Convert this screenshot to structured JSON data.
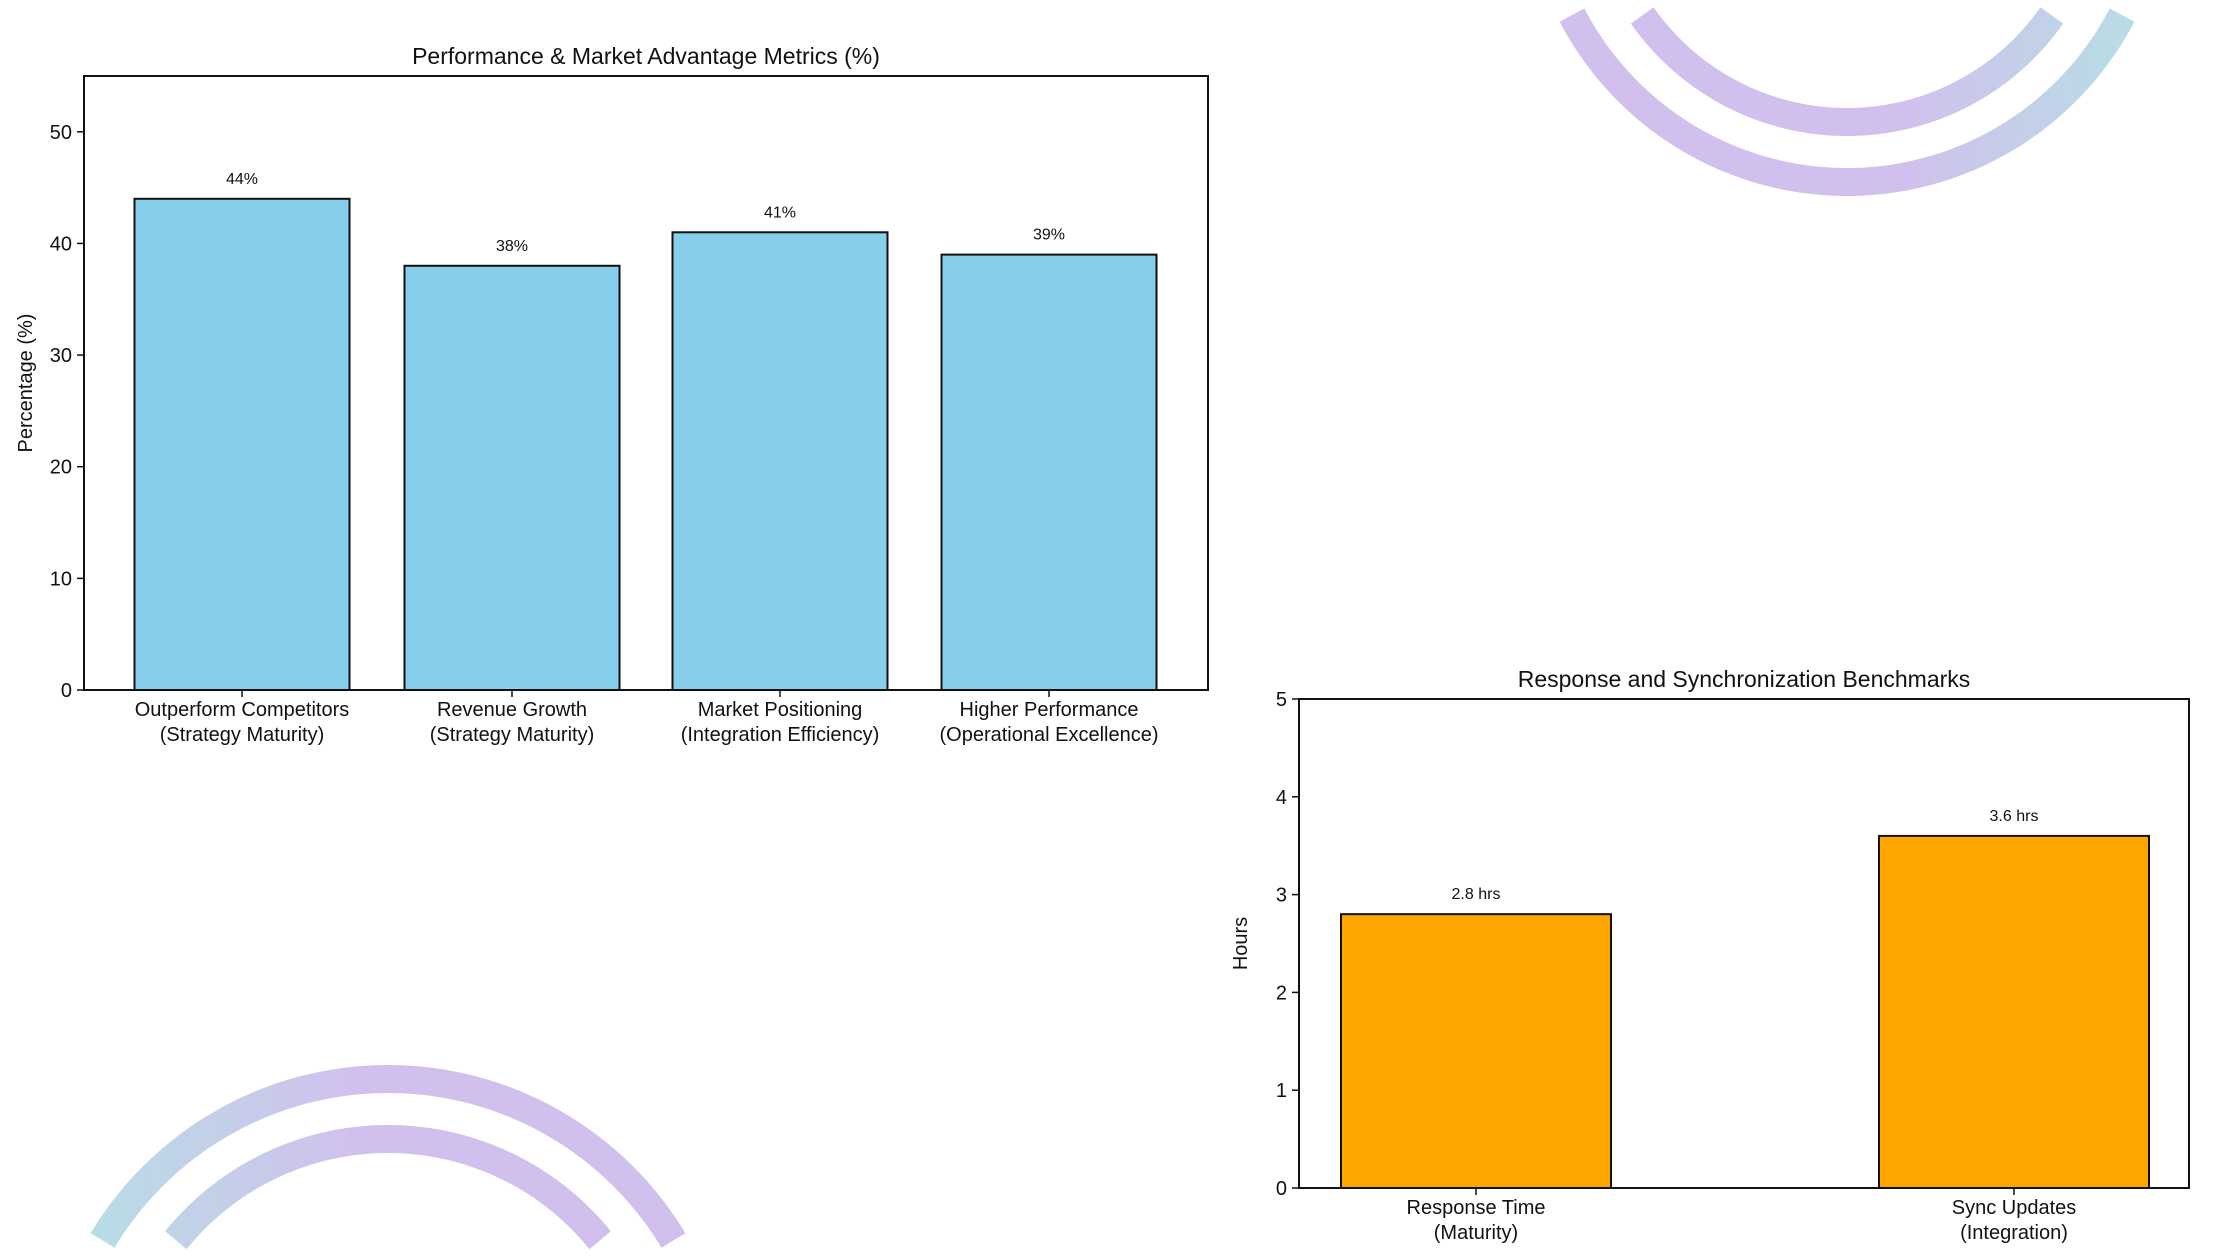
{
  "chart_data": [
    {
      "type": "bar",
      "title": "Performance & Market Advantage Metrics (%)",
      "xlabel": "",
      "ylabel": "Percentage (%)",
      "ylim": [
        0,
        55
      ],
      "yticks": [
        0,
        10,
        20,
        30,
        40,
        50
      ],
      "categories": [
        [
          "Outperform Competitors",
          "(Strategy Maturity)"
        ],
        [
          "Revenue Growth",
          "(Strategy Maturity)"
        ],
        [
          "Market Positioning",
          "(Integration Efficiency)"
        ],
        [
          "Higher Performance",
          "(Operational Excellence)"
        ]
      ],
      "values": [
        44,
        38,
        41,
        39
      ],
      "data_labels": [
        "44%",
        "38%",
        "41%",
        "39%"
      ],
      "color": "#87ceeb",
      "grid": false
    },
    {
      "type": "bar",
      "title": "Response and Synchronization Benchmarks",
      "xlabel": "",
      "ylabel": "Hours",
      "ylim": [
        0,
        5
      ],
      "yticks": [
        0,
        1,
        2,
        3,
        4,
        5
      ],
      "categories": [
        [
          "Response Time",
          "(Maturity)"
        ],
        [
          "Sync Updates",
          "(Integration)"
        ]
      ],
      "values": [
        2.8,
        3.6
      ],
      "data_labels": [
        "2.8 hrs",
        "3.6 hrs"
      ],
      "color": "#ffa500",
      "grid": false
    }
  ],
  "decoration": {
    "ring_colors": [
      "#a8dce0",
      "#c9b6ea"
    ]
  }
}
